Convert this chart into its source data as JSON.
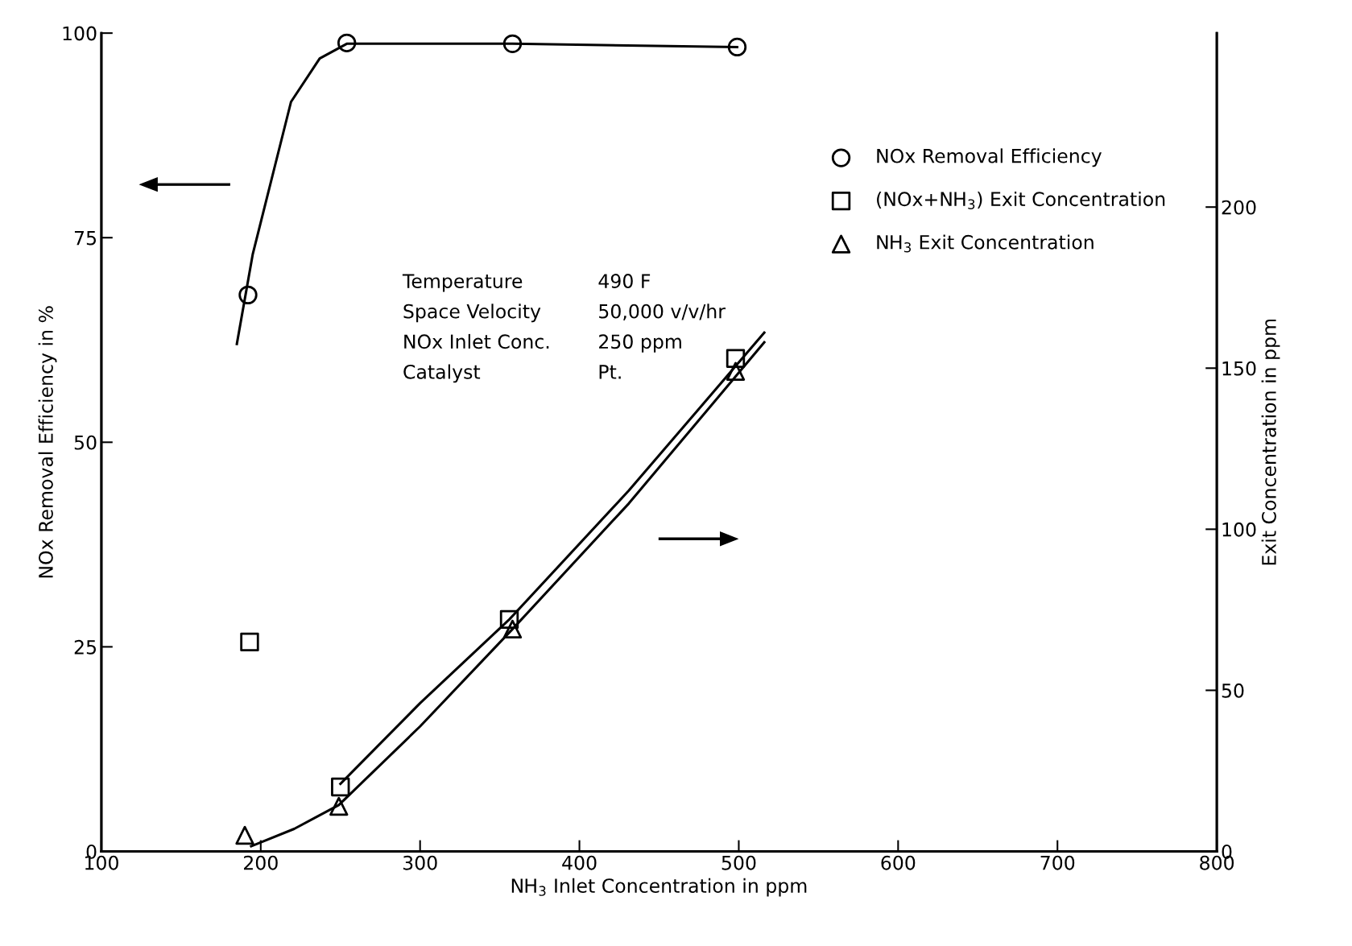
{
  "chart_data": {
    "type": "scatter",
    "xlabel": "NH$_{3}$ Inlet Concentration in ppm",
    "ylabel": "NOx Removal Efficiency in %",
    "y2label": "Exit Concentration in ppm",
    "xlim": [
      100,
      800
    ],
    "xticks": [
      100,
      200,
      300,
      400,
      500,
      600,
      700,
      800
    ],
    "ylim": [
      0,
      100
    ],
    "yticks": [
      0,
      25,
      50,
      75,
      100
    ],
    "y2lim": [
      0,
      254
    ],
    "y2ticks": [
      0,
      50,
      100,
      150,
      200
    ],
    "grid": false,
    "legend": "top right",
    "series": [
      {
        "name": "NOx Removal Efficiency",
        "marker": "circle",
        "color": "#000000",
        "x": [
          192,
          254,
          358,
          499
        ],
        "values": [
          68,
          98.8,
          98.7,
          98.3
        ]
      },
      {
        "name": "(NOx+NH$_{3}$) Exit Concentration",
        "marker": "square",
        "axis": "y2",
        "color": "#000000",
        "x": [
          193,
          250,
          356,
          498
        ],
        "values": [
          65,
          20,
          72,
          153
        ]
      },
      {
        "name": "NH$_{3}$ Exit Concentration",
        "marker": "triangle",
        "axis": "y2",
        "color": "#000000",
        "x": [
          190,
          249,
          358,
          498
        ],
        "values": [
          5,
          14,
          69,
          149
        ]
      },
      {
        "type": "line",
        "marker": "none",
        "line_style": "solid",
        "color": "#000000",
        "x": [
          185,
          195,
          219,
          237,
          254,
          358,
          499
        ],
        "values": [
          62,
          73,
          91.6,
          96.9,
          98.7,
          98.7,
          98.3
        ]
      },
      {
        "type": "line",
        "marker": "none",
        "line_style": "solid",
        "axis": "y2",
        "color": "#000000",
        "x": [
          250,
          300,
          356,
          431,
          516
        ],
        "values": [
          21,
          46,
          72,
          112,
          161
        ]
      },
      {
        "type": "line",
        "marker": "none",
        "line_style": "solid",
        "axis": "y2",
        "color": "#000000",
        "x": [
          194,
          221,
          249,
          300,
          358,
          431,
          516
        ],
        "values": [
          1.6,
          7,
          14.4,
          38.8,
          69,
          108,
          158
        ]
      }
    ],
    "annotations": [
      "Temperature",
      "490 F",
      "Space Velocity",
      "50,000 v/v/hr",
      "NOx Inlet Conc.",
      "250 ppm",
      "Catalyst",
      "Pt."
    ]
  }
}
